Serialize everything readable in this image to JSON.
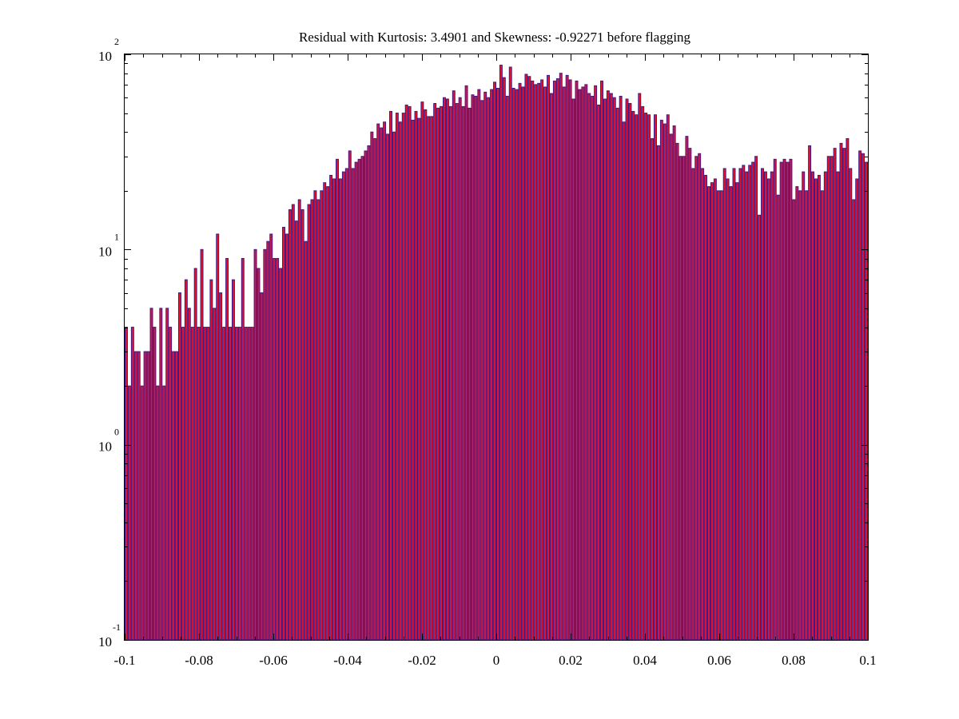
{
  "chart_data": {
    "type": "bar",
    "title": "Residual with Kurtosis: 3.4901 and Skewness: -0.92271 before flagging",
    "xlabel": "",
    "ylabel": "",
    "xlim": [
      -0.1,
      0.1
    ],
    "ylim": [
      0.1,
      100
    ],
    "yscale": "log",
    "grid": false,
    "legend": "none",
    "x_ticks": [
      "-0.1",
      "-0.08",
      "-0.06",
      "-0.04",
      "-0.02",
      "0",
      "0.02",
      "0.04",
      "0.06",
      "0.08",
      "0.1"
    ],
    "x_tick_values": [
      -0.1,
      -0.08,
      -0.06,
      -0.04,
      -0.02,
      0,
      0.02,
      0.04,
      0.06,
      0.08,
      0.1
    ],
    "y_ticks": [
      {
        "base": "10",
        "exp": "-1",
        "value": 0.1
      },
      {
        "base": "10",
        "exp": "0",
        "value": 1
      },
      {
        "base": "10",
        "exp": "1",
        "value": 10
      },
      {
        "base": "10",
        "exp": "2",
        "value": 100
      }
    ],
    "bar_color": "#e8112d",
    "edge_color": "#3a1b8a",
    "bin_width": 0.001,
    "values": [
      4,
      2,
      4,
      3,
      3,
      2,
      3,
      3,
      5,
      4,
      2,
      5,
      2,
      5,
      4,
      3,
      3,
      6,
      4,
      7,
      5,
      4,
      8,
      4,
      10,
      4,
      4,
      7,
      5,
      12,
      6,
      4,
      9,
      4,
      7,
      4,
      4,
      9,
      4,
      4,
      4,
      10,
      8,
      6,
      10,
      11,
      12,
      9,
      9,
      8,
      13,
      12,
      16,
      17,
      14,
      18,
      16,
      11,
      17,
      18,
      20,
      18,
      20,
      22,
      21,
      24,
      23,
      29,
      23,
      25,
      26,
      32,
      26,
      28,
      29,
      30,
      32,
      34,
      40,
      37,
      44,
      42,
      45,
      39,
      51,
      40,
      50,
      45,
      50,
      55,
      54,
      46,
      51,
      47,
      57,
      52,
      48,
      48,
      56,
      53,
      54,
      60,
      59,
      54,
      65,
      56,
      60,
      54,
      69,
      53,
      62,
      61,
      66,
      58,
      64,
      60,
      66,
      72,
      67,
      88,
      76,
      61,
      86,
      67,
      66,
      71,
      68,
      79,
      77,
      73,
      70,
      71,
      74,
      68,
      78,
      63,
      73,
      75,
      80,
      68,
      78,
      74,
      59,
      73,
      66,
      68,
      70,
      63,
      61,
      69,
      55,
      73,
      59,
      65,
      63,
      60,
      53,
      61,
      45,
      59,
      56,
      51,
      49,
      63,
      54,
      50,
      49,
      37,
      49,
      34,
      46,
      44,
      49,
      39,
      43,
      35,
      30,
      30,
      38,
      33,
      26,
      30,
      31,
      26,
      24,
      21,
      22,
      23,
      20,
      20,
      26,
      23,
      21,
      26,
      22,
      26,
      27,
      25,
      27,
      28,
      30,
      15,
      26,
      25,
      23,
      25,
      29,
      19,
      28,
      29,
      28,
      29,
      18,
      21,
      20,
      25,
      20,
      34,
      25,
      23,
      24,
      20,
      25,
      30,
      30,
      33,
      25,
      35,
      33,
      37,
      26,
      18,
      23,
      32,
      31,
      28
    ]
  }
}
